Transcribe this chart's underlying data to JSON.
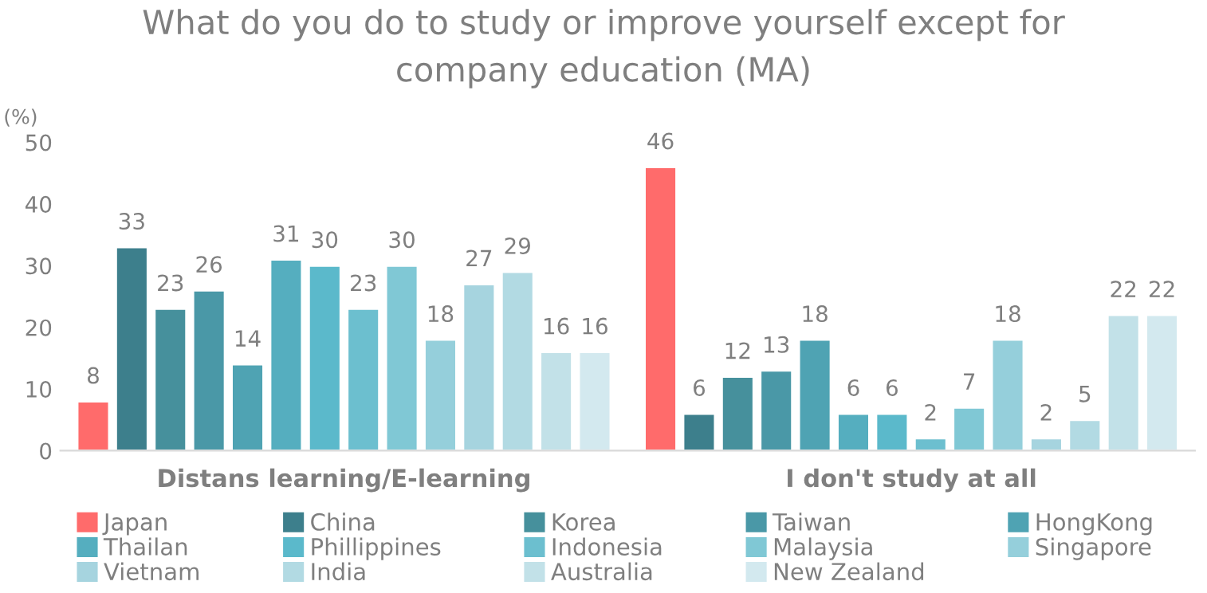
{
  "chart_data": {
    "type": "bar",
    "title": "What do you do to study or improve yourself except for\ncompany education (MA)",
    "ylabel": "(%)",
    "categories": [
      "Distans learning/E-learning",
      "I don't study at all"
    ],
    "series": [
      {
        "name": "Japan",
        "color": "#ff6b6b",
        "values": [
          8,
          46
        ]
      },
      {
        "name": "China",
        "color": "#3d7f8c",
        "values": [
          33,
          6
        ]
      },
      {
        "name": "Korea",
        "color": "#46909c",
        "values": [
          23,
          12
        ]
      },
      {
        "name": "Taiwan",
        "color": "#4a98a7",
        "values": [
          26,
          13
        ]
      },
      {
        "name": "HongKong",
        "color": "#4fa3b3",
        "values": [
          14,
          18
        ]
      },
      {
        "name": "Thailan",
        "color": "#55aebf",
        "values": [
          31,
          6
        ]
      },
      {
        "name": "Phillippines",
        "color": "#5bb9cb",
        "values": [
          30,
          6
        ]
      },
      {
        "name": "Indonesia",
        "color": "#6cbfcf",
        "values": [
          23,
          2
        ]
      },
      {
        "name": "Malaysia",
        "color": "#80c8d5",
        "values": [
          30,
          7
        ]
      },
      {
        "name": "Singapore",
        "color": "#95cfdb",
        "values": [
          18,
          18
        ]
      },
      {
        "name": "Vietnam",
        "color": "#a6d4df",
        "values": [
          27,
          2
        ]
      },
      {
        "name": "India",
        "color": "#b2dae3",
        "values": [
          29,
          5
        ]
      },
      {
        "name": "Australia",
        "color": "#c2e1e8",
        "values": [
          16,
          22
        ]
      },
      {
        "name": "New Zealand",
        "color": "#d3e9ef",
        "values": [
          16,
          22
        ]
      }
    ],
    "ylim": [
      0,
      50
    ],
    "yticks": [
      0,
      10,
      20,
      30,
      40,
      50
    ],
    "grid": false,
    "legend": "bottom",
    "data_labels": true
  }
}
